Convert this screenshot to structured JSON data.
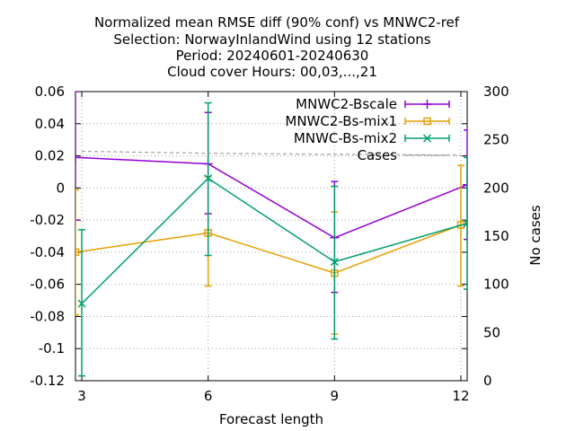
{
  "title_lines": [
    "Normalized mean RMSE diff (90% conf) vs MNWC2-ref",
    "Selection: NorwayInlandWind using    12 stations",
    "Period: 20240601-20240630",
    "Cloud cover   Hours: 00,03,...,21"
  ],
  "chart_data": {
    "type": "line",
    "xlabel": "Forecast length",
    "ylabel": "",
    "y2label": "No cases",
    "x_ticks": [
      3,
      6,
      9,
      12
    ],
    "xlim": [
      2.85,
      12.15
    ],
    "ylim": [
      -0.12,
      0.06
    ],
    "y_ticks": [
      0.06,
      0.04,
      0.02,
      0,
      -0.02,
      -0.04,
      -0.06,
      -0.08,
      -0.1,
      -0.12
    ],
    "y_tick_labels": [
      "0.06",
      "0.04",
      "0.02",
      "0",
      "-0.02",
      "-0.04",
      "-0.06",
      "-0.08",
      "-0.1",
      "-0.12"
    ],
    "y2lim": [
      0,
      300
    ],
    "y2_ticks": [
      0,
      50,
      100,
      150,
      200,
      250,
      300
    ],
    "grid": true,
    "legend_position": "top-right",
    "series": [
      {
        "name": "MNWC2-Bscale",
        "color": "#9400d3",
        "marker": "plus",
        "x": [
          2.85,
          6,
          9,
          12.15
        ],
        "y": [
          0.019,
          0.015,
          -0.031,
          0.002
        ],
        "err_low": [
          -0.02,
          -0.016,
          -0.065,
          -0.032
        ],
        "err_high": [
          0.06,
          0.047,
          0.004,
          0.036
        ]
      },
      {
        "name": "MNWC2-Bs-mix1",
        "color": "#e69f00",
        "marker": "square",
        "x": [
          2.85,
          6,
          9,
          12
        ],
        "y": [
          -0.04,
          -0.028,
          -0.053,
          -0.023
        ],
        "err_low": [
          -0.079,
          -0.061,
          -0.091,
          -0.061
        ],
        "err_high": [
          -0.001,
          0.007,
          -0.015,
          0.014
        ]
      },
      {
        "name": "MNWC-Bs-mix2",
        "color": "#009e73",
        "marker": "cross",
        "x": [
          3,
          6,
          9,
          12.15
        ],
        "y": [
          -0.072,
          0.006,
          -0.046,
          -0.022
        ],
        "err_low": [
          -0.117,
          -0.042,
          -0.094,
          -0.063
        ],
        "err_high": [
          -0.026,
          0.053,
          0.001,
          0.019
        ]
      },
      {
        "name": "Cases",
        "color": "#a0a0a0",
        "dashed": true,
        "axis": "y2",
        "x": [
          3,
          6,
          9,
          12
        ],
        "y": [
          238,
          236,
          235,
          234
        ]
      }
    ]
  }
}
